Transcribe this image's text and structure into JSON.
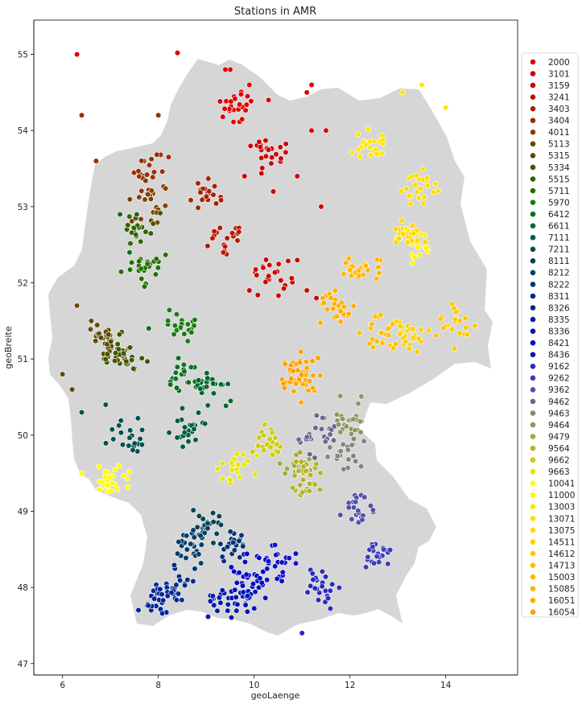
{
  "chart_data": {
    "type": "scatter",
    "title": "Stations in AMR",
    "xlabel": "geoLaenge",
    "ylabel": "geoBreite",
    "xlim": [
      5.4,
      15.5
    ],
    "ylim": [
      46.85,
      55.45
    ],
    "xticks": [
      6,
      8,
      10,
      12,
      14
    ],
    "yticks": [
      47,
      48,
      49,
      50,
      51,
      52,
      53,
      54,
      55
    ],
    "grid": false,
    "legend_position": "right",
    "background_shape": "Germany outline (light grey)",
    "background_color": "#d6d6d6",
    "series": [
      {
        "name": "2000",
        "color": "#e00000",
        "center": [
          9.6,
          54.3
        ],
        "points": [
          [
            6.3,
            55.0
          ],
          [
            8.4,
            55.02
          ],
          [
            9.5,
            54.8
          ],
          [
            9.4,
            54.8
          ],
          [
            9.9,
            54.6
          ],
          [
            11.2,
            54.6
          ],
          [
            11.1,
            54.5
          ],
          [
            10.3,
            54.4
          ],
          [
            11.5,
            54.0
          ],
          [
            11.2,
            54.0
          ]
        ]
      },
      {
        "name": "3101",
        "color": "#d00000",
        "center": [
          10.3,
          53.7
        ],
        "points": [
          [
            10.9,
            53.4
          ],
          [
            10.4,
            53.2
          ],
          [
            9.8,
            53.4
          ],
          [
            11.4,
            53.0
          ]
        ]
      },
      {
        "name": "3159",
        "color": "#c80a00",
        "center": [
          10.4,
          52.1
        ],
        "points": [
          [
            10.9,
            52.3
          ],
          [
            11.1,
            51.9
          ],
          [
            11.3,
            51.8
          ],
          [
            9.9,
            51.9
          ]
        ]
      },
      {
        "name": "3241",
        "color": "#b81800",
        "center": [
          9.4,
          52.6
        ],
        "points": []
      },
      {
        "name": "3403",
        "color": "#a82000",
        "center": [
          9.0,
          53.1
        ],
        "points": []
      },
      {
        "name": "3404",
        "color": "#983000",
        "center": [
          7.8,
          53.5
        ],
        "points": [
          [
            6.4,
            54.2
          ],
          [
            8.0,
            54.2
          ],
          [
            6.7,
            53.6
          ]
        ]
      },
      {
        "name": "4011",
        "color": "#804000",
        "center": [
          7.8,
          53.05
        ],
        "points": []
      },
      {
        "name": "5113",
        "color": "#684800",
        "center": [
          6.9,
          51.2
        ],
        "points": [
          [
            6.0,
            50.8
          ],
          [
            6.3,
            51.7
          ],
          [
            6.7,
            51.3
          ],
          [
            7.3,
            51.0
          ],
          [
            6.2,
            50.6
          ],
          [
            6.6,
            51.5
          ]
        ]
      },
      {
        "name": "5315",
        "color": "#4c5000",
        "center": [
          7.1,
          51.15
        ],
        "points": []
      },
      {
        "name": "5334",
        "color": "#3c5800",
        "center": [
          7.4,
          51.0
        ],
        "points": []
      },
      {
        "name": "5515",
        "color": "#2e6400",
        "center": [
          7.6,
          52.7
        ],
        "points": []
      },
      {
        "name": "5711",
        "color": "#227000",
        "center": [
          7.7,
          52.2
        ],
        "points": []
      },
      {
        "name": "5970",
        "color": "#187c10",
        "center": [
          8.6,
          51.4
        ],
        "points": []
      },
      {
        "name": "6412",
        "color": "#0a7020",
        "center": [
          8.5,
          50.8
        ],
        "points": [
          [
            7.2,
            52.9
          ],
          [
            7.4,
            52.4
          ],
          [
            7.8,
            51.4
          ]
        ]
      },
      {
        "name": "6611",
        "color": "#006830",
        "center": [
          9.1,
          50.6
        ],
        "points": []
      },
      {
        "name": "7111",
        "color": "#005c40",
        "center": [
          8.6,
          50.1
        ],
        "points": []
      },
      {
        "name": "7211",
        "color": "#005050",
        "center": [
          7.3,
          50.0
        ],
        "points": [
          [
            6.4,
            50.3
          ],
          [
            6.9,
            50.4
          ]
        ]
      },
      {
        "name": "8111",
        "color": "#004458",
        "center": [
          9.0,
          48.8
        ],
        "points": []
      },
      {
        "name": "8212",
        "color": "#003c68",
        "center": [
          8.6,
          48.5
        ],
        "points": []
      },
      {
        "name": "8222",
        "color": "#003478",
        "center": [
          9.6,
          48.5
        ],
        "points": []
      },
      {
        "name": "8311",
        "color": "#002c88",
        "center": [
          8.4,
          48.0
        ],
        "points": []
      },
      {
        "name": "8326",
        "color": "#002498",
        "center": [
          8.0,
          47.8
        ],
        "points": []
      },
      {
        "name": "8335",
        "color": "#001ca8",
        "center": [
          9.3,
          47.8
        ],
        "points": []
      },
      {
        "name": "8336",
        "color": "#0014b8",
        "center": [
          9.9,
          47.9
        ],
        "points": []
      },
      {
        "name": "8421",
        "color": "#000cc8",
        "center": [
          9.9,
          48.2
        ],
        "points": []
      },
      {
        "name": "8436",
        "color": "#1010c8",
        "center": [
          10.5,
          48.3
        ],
        "points": []
      },
      {
        "name": "9162",
        "color": "#2a2ac0",
        "center": [
          11.4,
          48.0
        ],
        "points": [
          [
            11.0,
            47.4
          ]
        ]
      },
      {
        "name": "9262",
        "color": "#3c3cb8",
        "center": [
          12.6,
          48.4
        ],
        "points": []
      },
      {
        "name": "9362",
        "color": "#5050a8",
        "center": [
          12.2,
          49.1
        ],
        "points": []
      },
      {
        "name": "9462",
        "color": "#686890",
        "center": [
          11.3,
          50.0
        ],
        "points": []
      },
      {
        "name": "9463",
        "color": "#808878",
        "center": [
          11.9,
          49.8
        ],
        "points": []
      },
      {
        "name": "9464",
        "color": "#8c9660",
        "center": [
          12.0,
          50.2
        ],
        "points": []
      },
      {
        "name": "9479",
        "color": "#a0aa40",
        "center": [
          11.0,
          49.6
        ],
        "points": []
      },
      {
        "name": "9564",
        "color": "#b4b428",
        "center": [
          11.1,
          49.4
        ],
        "points": []
      },
      {
        "name": "9662",
        "color": "#cccc10",
        "center": [
          10.3,
          49.9
        ],
        "points": []
      },
      {
        "name": "9663",
        "color": "#e6e600",
        "center": [
          9.6,
          49.6
        ],
        "points": []
      },
      {
        "name": "10041",
        "color": "#ffff00",
        "center": [
          7.0,
          49.4
        ],
        "points": [
          [
            6.4,
            49.5
          ],
          [
            6.8,
            49.3
          ]
        ]
      },
      {
        "name": "11000",
        "color": "#fff200",
        "center": [
          13.4,
          52.5
        ],
        "points": []
      },
      {
        "name": "13003",
        "color": "#ffe600",
        "center": [
          12.4,
          53.8
        ],
        "points": [
          [
            13.5,
            54.6
          ],
          [
            13.1,
            54.5
          ],
          [
            14.0,
            54.3
          ]
        ]
      },
      {
        "name": "13071",
        "color": "#ffde00",
        "center": [
          13.4,
          53.3
        ],
        "points": []
      },
      {
        "name": "13075",
        "color": "#ffd800",
        "center": [
          13.2,
          52.7
        ],
        "points": []
      },
      {
        "name": "14511",
        "color": "#ffd000",
        "center": [
          13.2,
          51.3
        ],
        "points": []
      },
      {
        "name": "14612",
        "color": "#ffc800",
        "center": [
          14.2,
          51.4
        ],
        "points": []
      },
      {
        "name": "14713",
        "color": "#ffc000",
        "center": [
          12.6,
          51.4
        ],
        "points": []
      },
      {
        "name": "15003",
        "color": "#ffb800",
        "center": [
          12.2,
          52.2
        ],
        "points": []
      },
      {
        "name": "15085",
        "color": "#ffb000",
        "center": [
          11.7,
          51.7
        ],
        "points": []
      },
      {
        "name": "16051",
        "color": "#ffa800",
        "center": [
          11.0,
          50.7
        ],
        "points": []
      },
      {
        "name": "16054",
        "color": "#ffa000",
        "center": [
          10.9,
          50.9
        ],
        "points": []
      }
    ]
  }
}
